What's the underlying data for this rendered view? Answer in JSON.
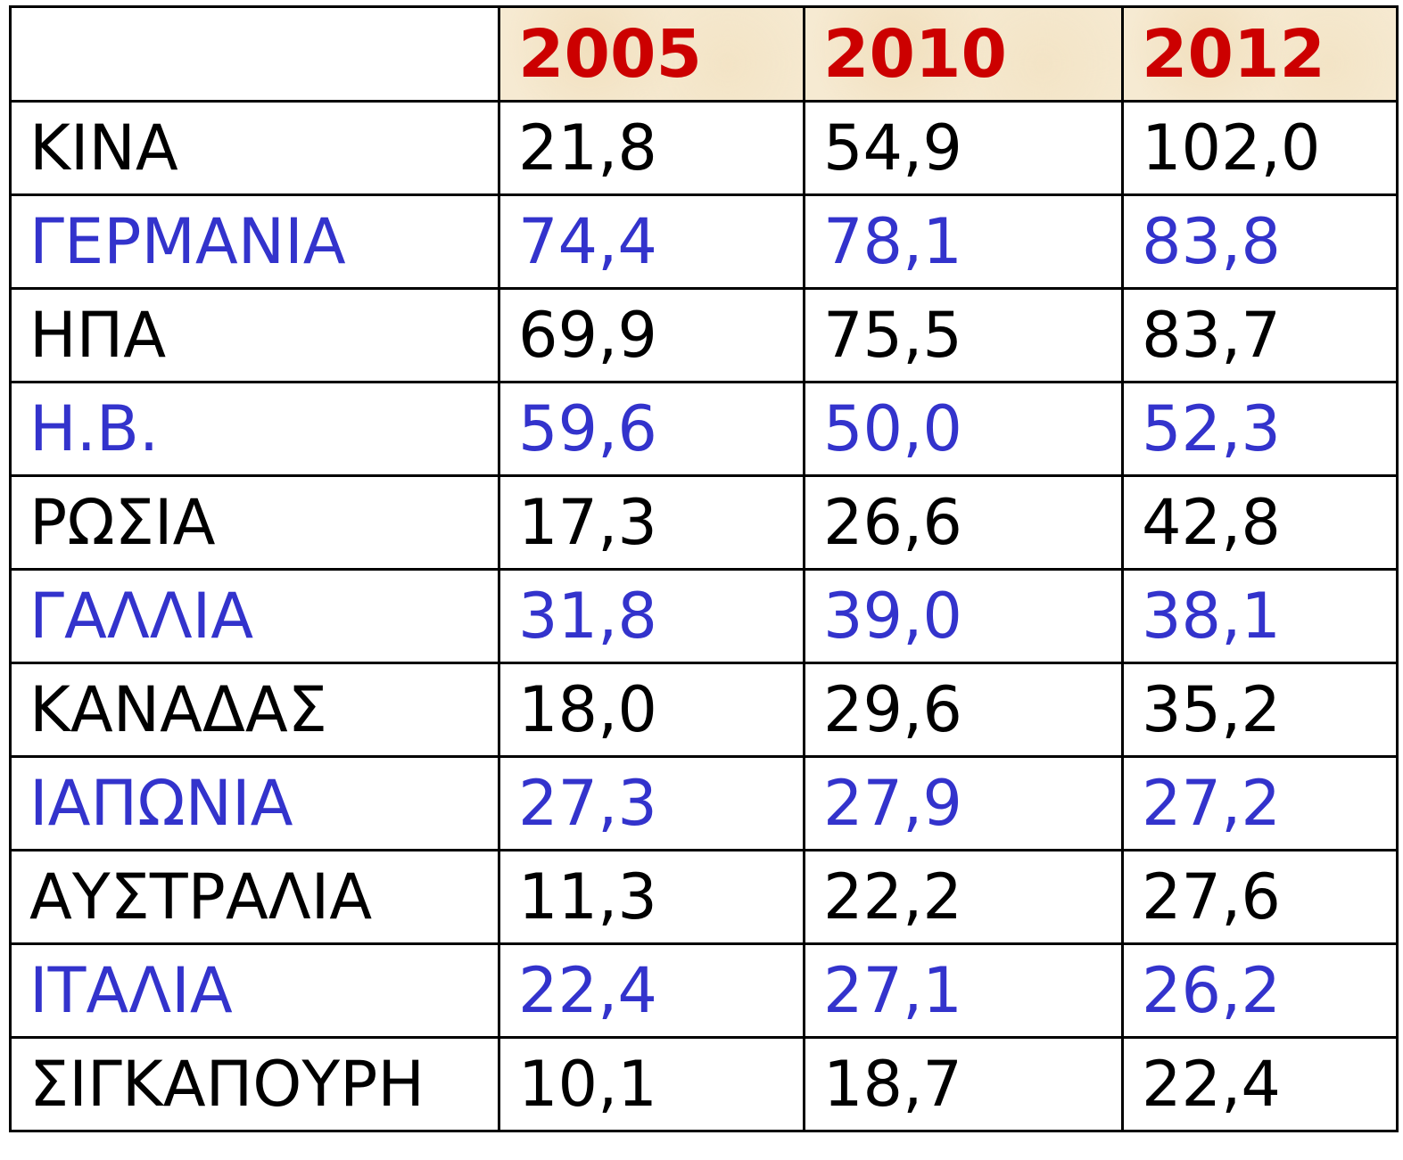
{
  "table": {
    "header": [
      "",
      "2005",
      "2010",
      "2012"
    ],
    "rows": [
      [
        "ΚΙΝΑ",
        "21,8",
        "54,9",
        "102,0"
      ],
      [
        "ΓΕΡΜΑΝΙΑ",
        "74,4",
        "78,1",
        "83,8"
      ],
      [
        "ΗΠΑ",
        "69,9",
        "75,5",
        "83,7"
      ],
      [
        "Η.Β.",
        "59,6",
        "50,0",
        "52,3"
      ],
      [
        "ΡΩΣΙΑ",
        "17,3",
        "26,6",
        "42,8"
      ],
      [
        "ΓΑΛΛΙΑ",
        "31,8",
        "39,0",
        "38,1"
      ],
      [
        "ΚΑΝΑΔΑΣ",
        "18,0",
        "29,6",
        "35,2"
      ],
      [
        "ΙΑΠΩΝΙΑ",
        "27,3",
        "27,9",
        "27,2"
      ],
      [
        "ΑΥΣΤΡΑΛΙΑ",
        "11,3",
        "22,2",
        "27,6"
      ],
      [
        "ΙΤΑΛΙΑ",
        "22,4",
        "27,1",
        "26,2"
      ],
      [
        "ΣΙΓΚΑΠΟΥΡΗ",
        "10,1",
        "18,7",
        "22,4"
      ]
    ]
  }
}
